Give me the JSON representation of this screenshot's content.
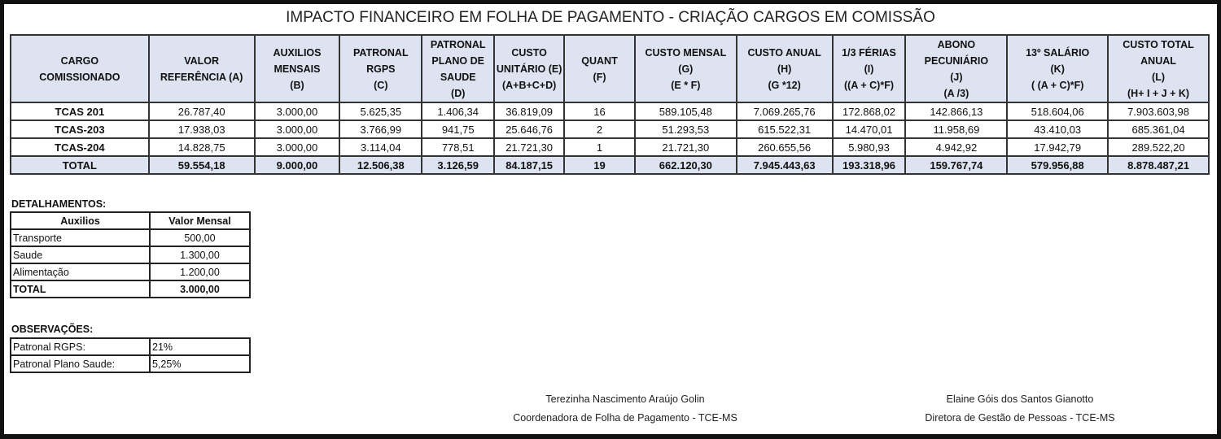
{
  "title": "IMPACTO FINANCEIRO EM FOLHA DE PAGAMENTO - CRIAÇÃO CARGOS EM COMISSÃO",
  "main_table": {
    "headers": [
      [
        "CARGO",
        "COMISSIONADO"
      ],
      [
        "VALOR",
        "REFERÊNCIA   (A)"
      ],
      [
        "AUXILIOS",
        "MENSAIS",
        "(B)"
      ],
      [
        "PATRONAL",
        "RGPS",
        "(C)"
      ],
      [
        "PATRONAL",
        "PLANO DE",
        "SAUDE",
        "(D)"
      ],
      [
        "CUSTO",
        "UNITÁRIO (E)",
        "(A+B+C+D)"
      ],
      [
        "QUANT",
        "(F)"
      ],
      [
        "CUSTO MENSAL",
        "(G)",
        "(E * F)"
      ],
      [
        "CUSTO ANUAL",
        "(H)",
        "(G *12)"
      ],
      [
        "1/3 FÉRIAS",
        "(I)",
        "((A + C)*F)"
      ],
      [
        "ABONO",
        "PECUNIÁRIO",
        "(J)",
        "(A /3)"
      ],
      [
        "13º SALÁRIO",
        "(K)",
        "( (A + C)*F)"
      ],
      [
        "CUSTO TOTAL",
        "ANUAL",
        "(L)",
        "(H+ I + J + K)"
      ]
    ],
    "rows": [
      [
        "TCAS 201",
        "26.787,40",
        "3.000,00",
        "5.625,35",
        "1.406,34",
        "36.819,09",
        "16",
        "589.105,48",
        "7.069.265,76",
        "172.868,02",
        "142.866,13",
        "518.604,06",
        "7.903.603,98"
      ],
      [
        "TCAS-203",
        "17.938,03",
        "3.000,00",
        "3.766,99",
        "941,75",
        "25.646,76",
        "2",
        "51.293,53",
        "615.522,31",
        "14.470,01",
        "11.958,69",
        "43.410,03",
        "685.361,04"
      ],
      [
        "TCAS-204",
        "14.828,75",
        "3.000,00",
        "3.114,04",
        "778,51",
        "21.721,30",
        "1",
        "21.721,30",
        "260.655,56",
        "5.980,93",
        "4.942,92",
        "17.942,79",
        "289.522,20"
      ]
    ],
    "total": [
      "TOTAL",
      "59.554,18",
      "9.000,00",
      "12.506,38",
      "3.126,59",
      "84.187,15",
      "19",
      "662.120,30",
      "7.945.443,63",
      "193.318,96",
      "159.767,74",
      "579.956,88",
      "8.878.487,21"
    ]
  },
  "details": {
    "heading": "DETALHAMENTOS:",
    "headers": [
      "Auxilios",
      "Valor Mensal"
    ],
    "rows": [
      [
        "Transporte",
        "500,00"
      ],
      [
        "Saude",
        "1.300,00"
      ],
      [
        "Alimentação",
        "1.200,00"
      ],
      [
        "TOTAL",
        "3.000,00"
      ]
    ]
  },
  "observations": {
    "heading": "OBSERVAÇÕES:",
    "rows": [
      [
        "Patronal RGPS:",
        "21%"
      ],
      [
        "Patronal Plano Saude:",
        "5,25%"
      ]
    ]
  },
  "signatures": [
    {
      "name": "Terezinha Nascimento Araújo Golin",
      "role": "Coordenadora de Folha de Pagamento - TCE-MS"
    },
    {
      "name": "Elaine Góis dos Santos Gianotto",
      "role": "Diretora de Gestão de Pessoas - TCE-MS"
    }
  ],
  "colors": {
    "header_bg": "#dde3f0",
    "border": "#333333"
  }
}
